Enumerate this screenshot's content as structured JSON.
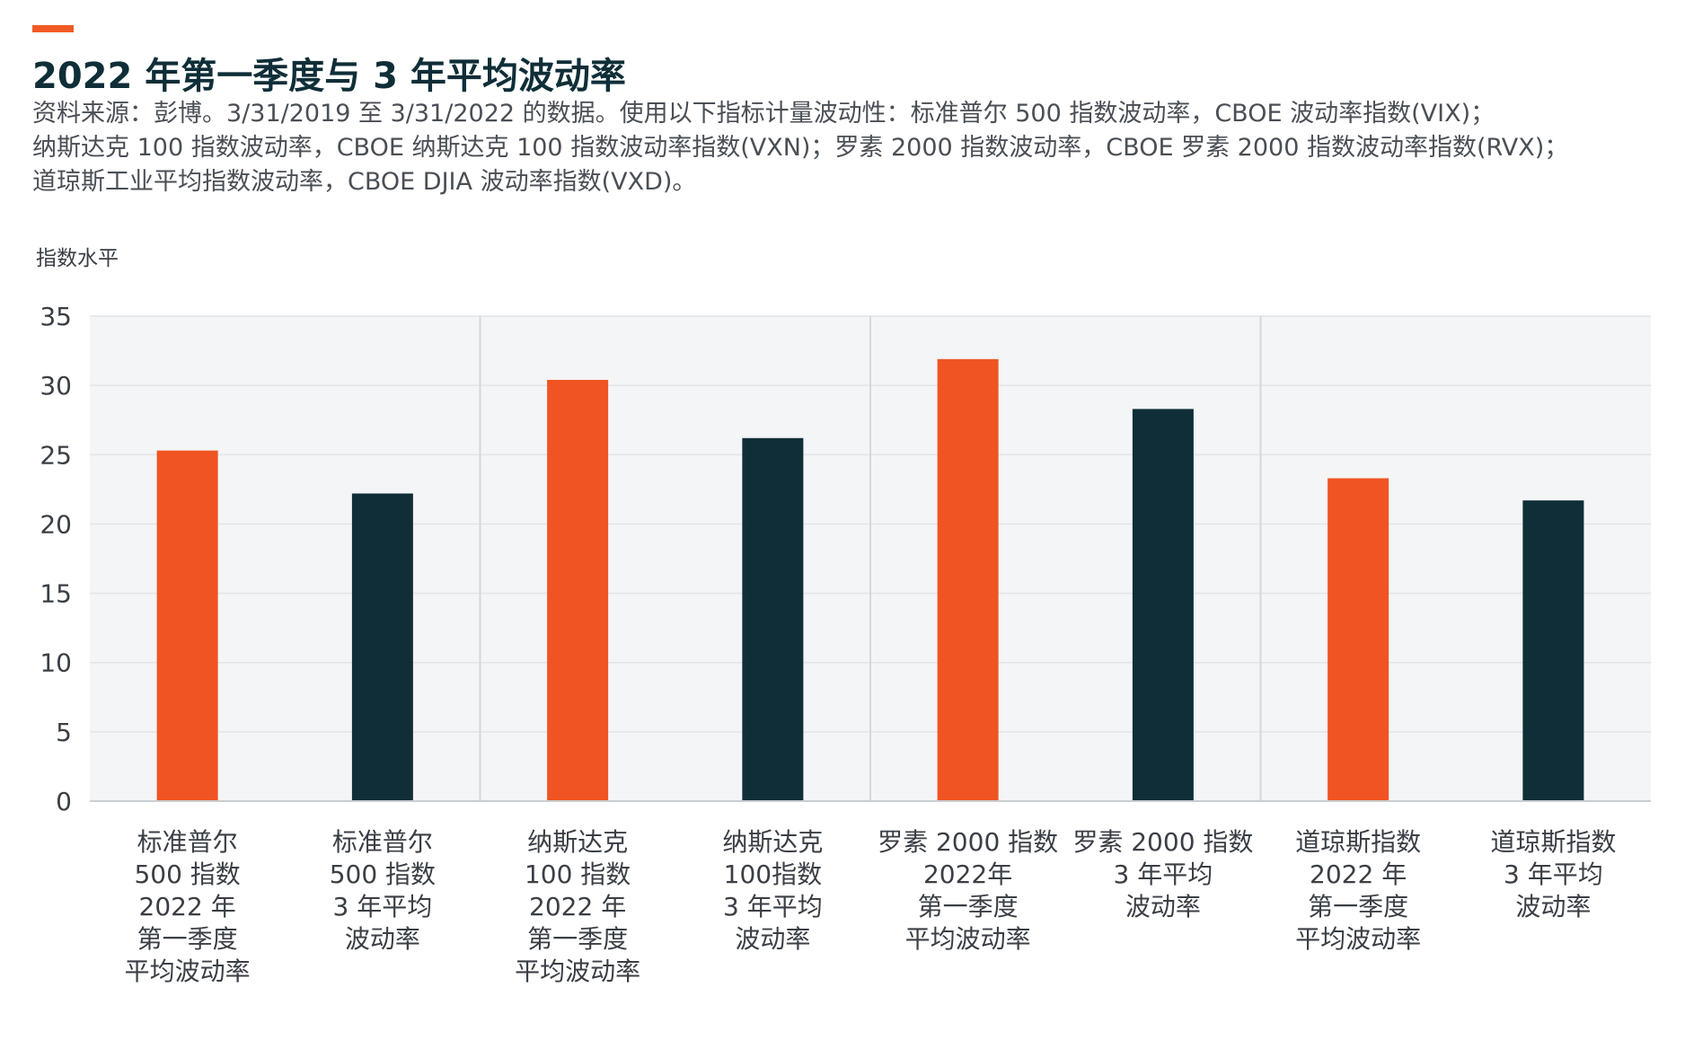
{
  "header": {
    "title": "2022 年第一季度与 3 年平均波动率",
    "source_lines": [
      "资料来源：彭博。3/31/2019 至 3/31/2022 的数据。使用以下指标计量波动性：标准普尔 500 指数波动率，CBOE 波动率指数(VIX)；",
      "纳斯达克 100 指数波动率，CBOE 纳斯达克 100 指数波动率指数(VXN)；罗素 2000 指数波动率，CBOE 罗素 2000 指数波动率指数(RVX)；",
      "道琼斯工业平均指数波动率，CBOE DJIA 波动率指数(VXD)。"
    ]
  },
  "colors": {
    "accent": "#f15a24",
    "q1_bar": "#f05423",
    "avg_bar": "#0f2e38",
    "plot_bg": "#f4f5f6",
    "grid": "#e2e4e6"
  },
  "chart_data": {
    "type": "bar",
    "ylabel": "指数水平",
    "ylim": [
      0,
      35
    ],
    "yticks": [
      0,
      5,
      10,
      15,
      20,
      25,
      30,
      35
    ],
    "grid": true,
    "groups": 4,
    "categories": [
      [
        "标准普尔",
        "500 指数",
        "2022 年",
        "第一季度",
        "平均波动率"
      ],
      [
        "标准普尔",
        "500 指数",
        "3 年平均",
        "波动率"
      ],
      [
        "纳斯达克",
        "100 指数",
        "2022 年",
        "第一季度",
        "平均波动率"
      ],
      [
        "纳斯达克",
        "100指数",
        "3 年平均",
        "波动率"
      ],
      [
        "罗素 2000 指数",
        "2022年",
        "第一季度",
        "平均波动率"
      ],
      [
        "罗素 2000 指数",
        "3 年平均",
        "波动率"
      ],
      [
        "道琼斯指数",
        "2022 年",
        "第一季度",
        "平均波动率"
      ],
      [
        "道琼斯指数",
        "3 年平均",
        "波动率"
      ]
    ],
    "values": [
      25.3,
      22.2,
      30.4,
      26.2,
      31.9,
      28.3,
      23.3,
      21.7
    ],
    "bar_kinds": [
      "q1",
      "avg",
      "q1",
      "avg",
      "q1",
      "avg",
      "q1",
      "avg"
    ]
  }
}
